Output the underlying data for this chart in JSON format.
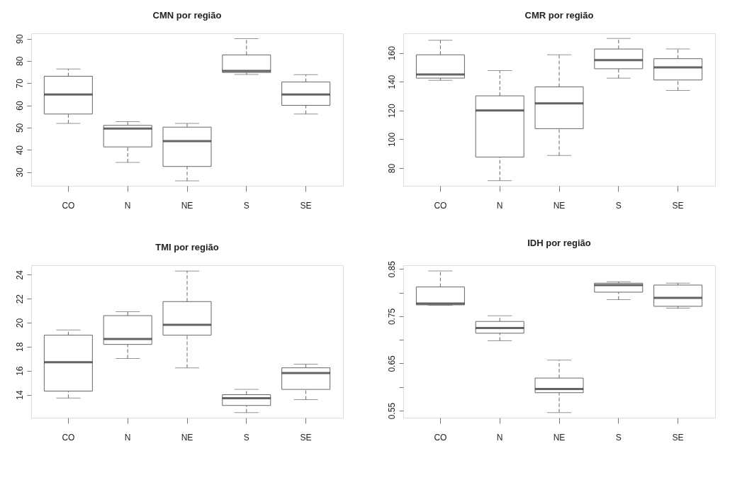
{
  "chart_data": [
    {
      "type": "box",
      "title": "CMN por região",
      "categories": [
        "CO",
        "N",
        "NE",
        "S",
        "SE"
      ],
      "ylim": [
        23.8,
        92.4
      ],
      "yticks": [
        30,
        40,
        50,
        60,
        70,
        80,
        90
      ],
      "boxes": [
        {
          "low": 51.9,
          "q1": 56.1,
          "median": 64.9,
          "q3": 73.1,
          "high": 76.4
        },
        {
          "low": 34.3,
          "q1": 41.3,
          "median": 49.6,
          "q3": 51.0,
          "high": 52.7
        },
        {
          "low": 26.0,
          "q1": 32.5,
          "median": 43.9,
          "q3": 50.2,
          "high": 51.9
        },
        {
          "low": 73.9,
          "q1": 74.8,
          "median": 75.5,
          "q3": 82.7,
          "high": 90.0
        },
        {
          "low": 56.1,
          "q1": 60.0,
          "median": 64.9,
          "q3": 70.5,
          "high": 73.8
        }
      ]
    },
    {
      "type": "box",
      "title": "CMR por região",
      "categories": [
        "CO",
        "N",
        "NE",
        "S",
        "SE"
      ],
      "ylim": [
        67.7,
        173.6
      ],
      "yticks": [
        80,
        100,
        120,
        140,
        160
      ],
      "boxes": [
        {
          "low": 141.0,
          "q1": 142.5,
          "median": 145.0,
          "q3": 158.7,
          "high": 168.8
        },
        {
          "low": 71.3,
          "q1": 87.7,
          "median": 120.0,
          "q3": 130.2,
          "high": 147.7
        },
        {
          "low": 88.7,
          "q1": 107.4,
          "median": 125.0,
          "q3": 136.4,
          "high": 158.7
        },
        {
          "low": 142.5,
          "q1": 149.0,
          "median": 155.0,
          "q3": 162.7,
          "high": 170.0
        },
        {
          "low": 133.9,
          "q1": 141.2,
          "median": 150.0,
          "q3": 156.0,
          "high": 162.8
        }
      ]
    },
    {
      "type": "box",
      "title": "TMI por região",
      "categories": [
        "CO",
        "N",
        "NE",
        "S",
        "SE"
      ],
      "ylim": [
        12.08,
        24.79
      ],
      "yticks": [
        14,
        16,
        18,
        20,
        22,
        24
      ],
      "boxes": [
        {
          "low": 13.72,
          "q1": 14.3,
          "median": 16.7,
          "q3": 18.96,
          "high": 19.4
        },
        {
          "low": 17.02,
          "q1": 18.19,
          "median": 18.64,
          "q3": 20.59,
          "high": 20.92
        },
        {
          "low": 16.24,
          "q1": 18.96,
          "median": 19.83,
          "q3": 21.76,
          "high": 24.3
        },
        {
          "low": 12.51,
          "q1": 13.1,
          "median": 13.7,
          "q3": 14.0,
          "high": 14.44
        },
        {
          "low": 13.59,
          "q1": 14.44,
          "median": 15.81,
          "q3": 16.24,
          "high": 16.54
        }
      ]
    },
    {
      "type": "box",
      "title": "IDH por região",
      "categories": [
        "CO",
        "N",
        "NE",
        "S",
        "SE"
      ],
      "ylim": [
        0.535,
        0.858
      ],
      "yticks": [
        0.55,
        {
          "value": 0.6,
          "label": null
        },
        0.65,
        {
          "value": 0.7,
          "label": null
        },
        0.75,
        {
          "value": 0.8,
          "label": null
        },
        0.85
      ],
      "boxes": [
        {
          "low": 0.773,
          "q1": 0.774,
          "median": 0.777,
          "q3": 0.812,
          "high": 0.846
        },
        {
          "low": 0.698,
          "q1": 0.714,
          "median": 0.725,
          "q3": 0.739,
          "high": 0.751
        },
        {
          "low": 0.546,
          "q1": 0.588,
          "median": 0.596,
          "q3": 0.619,
          "high": 0.657
        },
        {
          "low": 0.785,
          "q1": 0.801,
          "median": 0.816,
          "q3": 0.82,
          "high": 0.823
        },
        {
          "low": 0.767,
          "q1": 0.771,
          "median": 0.789,
          "q3": 0.816,
          "high": 0.82
        }
      ]
    }
  ]
}
